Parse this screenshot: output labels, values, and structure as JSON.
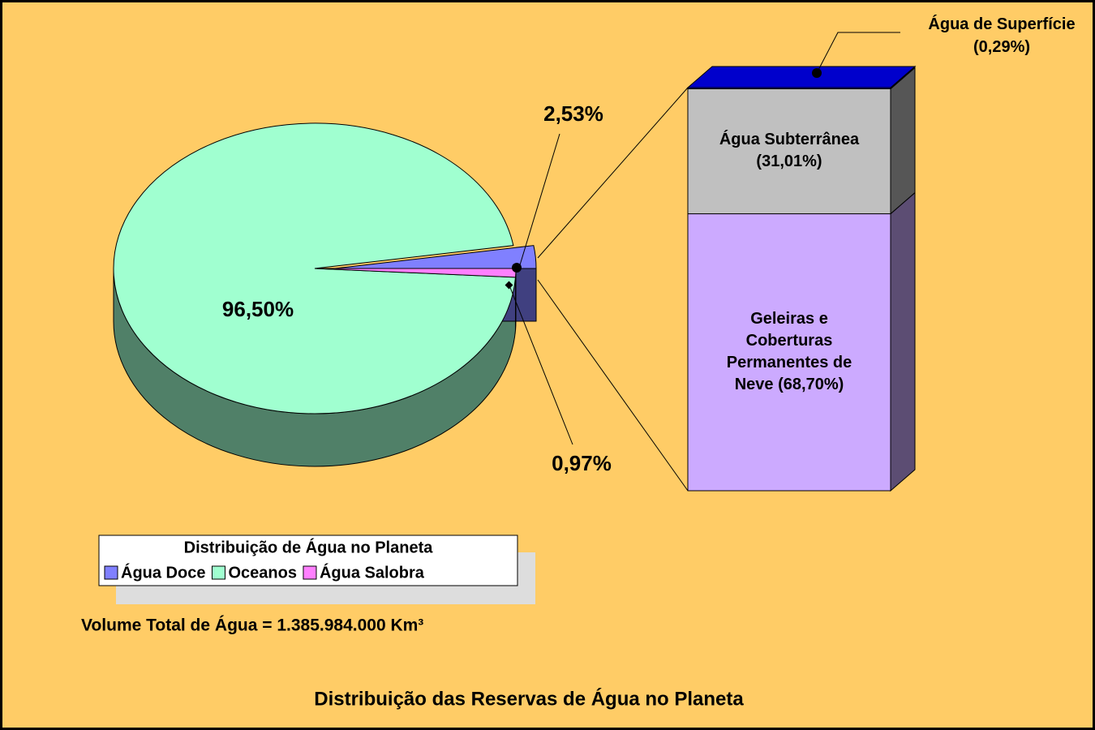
{
  "chart_data": [
    {
      "type": "pie",
      "title": "Distribuição das Reservas de Água no Planeta",
      "legend_title": "Distribuição de Água no Planeta",
      "annotation": "Volume Total de Água = 1.385.984.000 Km³",
      "categories": [
        "Água Doce",
        "Oceanos",
        "Água Salobra"
      ],
      "values": [
        2.53,
        96.5,
        0.97
      ],
      "value_labels": [
        "2,53%",
        "96,50%",
        "0,97%"
      ],
      "colors": [
        "#8080FF",
        "#A0FFD0",
        "#FF80FF"
      ],
      "legend": "bottom-left"
    },
    {
      "type": "bar",
      "stacked": true,
      "series": [
        {
          "name": "Geleiras e Coberturas Permanentes de Neve",
          "color": "#CCAAFF",
          "values": [
            68.7
          ],
          "value_labels": [
            "(68,70%)"
          ]
        },
        {
          "name": "Água Subterrânea",
          "color": "#C0C0C0",
          "values": [
            31.01
          ],
          "value_labels": [
            "(31,01%)"
          ]
        },
        {
          "name": "Água de Superfície",
          "color": "#0000CC",
          "values": [
            0.29
          ],
          "value_labels": [
            "(0,29%)"
          ]
        }
      ]
    }
  ]
}
